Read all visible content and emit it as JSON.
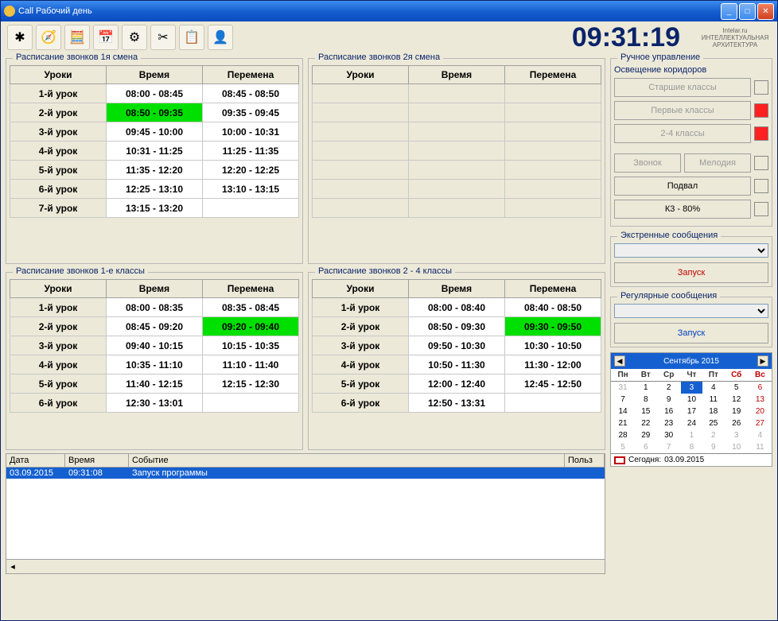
{
  "window": {
    "title": "Call      Рабочий день"
  },
  "clock": "09:31:19",
  "logo": "Intelar.ru ИНТЕЛЛЕКТУАЛЬНАЯ АРХИТЕКТУРА",
  "toolbar_icons": [
    "✱",
    "🧭",
    "🧮",
    "📅",
    "⚙",
    "✂",
    "📋",
    "👤"
  ],
  "schedules": {
    "s1": {
      "title": "Расписание звонков 1я смена",
      "headers": [
        "Уроки",
        "Время",
        "Перемена"
      ],
      "rows": [
        {
          "l": "1-й урок",
          "t": "08:00 - 08:45",
          "b": "08:45 - 08:50"
        },
        {
          "l": "2-й урок",
          "t": "08:50 - 09:35",
          "b": "09:35 - 09:45",
          "tactive": true
        },
        {
          "l": "3-й урок",
          "t": "09:45 - 10:00",
          "b": "10:00 - 10:31"
        },
        {
          "l": "4-й урок",
          "t": "10:31 - 11:25",
          "b": "11:25 - 11:35"
        },
        {
          "l": "5-й урок",
          "t": "11:35 - 12:20",
          "b": "12:20 - 12:25"
        },
        {
          "l": "6-й урок",
          "t": "12:25 - 13:10",
          "b": "13:10 - 13:15"
        },
        {
          "l": "7-й урок",
          "t": "13:15 - 13:20",
          "b": ""
        }
      ]
    },
    "s2": {
      "title": "Расписание звонков 2я смена",
      "headers": [
        "Уроки",
        "Время",
        "Перемена"
      ],
      "rows": [
        {
          "l": "",
          "t": "",
          "b": ""
        },
        {
          "l": "",
          "t": "",
          "b": ""
        },
        {
          "l": "",
          "t": "",
          "b": ""
        },
        {
          "l": "",
          "t": "",
          "b": ""
        },
        {
          "l": "",
          "t": "",
          "b": ""
        },
        {
          "l": "",
          "t": "",
          "b": ""
        },
        {
          "l": "",
          "t": "",
          "b": ""
        }
      ]
    },
    "s3": {
      "title": "Расписание звонков 1-е классы",
      "headers": [
        "Уроки",
        "Время",
        "Перемена"
      ],
      "rows": [
        {
          "l": "1-й урок",
          "t": "08:00 - 08:35",
          "b": "08:35 - 08:45"
        },
        {
          "l": "2-й урок",
          "t": "08:45 - 09:20",
          "b": "09:20 - 09:40",
          "bactive": true
        },
        {
          "l": "3-й урок",
          "t": "09:40 - 10:15",
          "b": "10:15 - 10:35"
        },
        {
          "l": "4-й урок",
          "t": "10:35 - 11:10",
          "b": "11:10 - 11:40"
        },
        {
          "l": "5-й урок",
          "t": "11:40 - 12:15",
          "b": "12:15 - 12:30"
        },
        {
          "l": "6-й урок",
          "t": "12:30 - 13:01",
          "b": ""
        }
      ]
    },
    "s4": {
      "title": "Расписание звонков 2 - 4 классы",
      "headers": [
        "Уроки",
        "Время",
        "Перемена"
      ],
      "rows": [
        {
          "l": "1-й урок",
          "t": "08:00 - 08:40",
          "b": "08:40 - 08:50"
        },
        {
          "l": "2-й урок",
          "t": "08:50 - 09:30",
          "b": "09:30 - 09:50",
          "bactive": true
        },
        {
          "l": "3-й урок",
          "t": "09:50 - 10:30",
          "b": "10:30 - 10:50"
        },
        {
          "l": "4-й урок",
          "t": "10:50 - 11:30",
          "b": "11:30 - 12:00"
        },
        {
          "l": "5-й урок",
          "t": "12:00 - 12:40",
          "b": "12:45 - 12:50"
        },
        {
          "l": "6-й урок",
          "t": "12:50 - 13:31",
          "b": ""
        }
      ]
    }
  },
  "log": {
    "headers": {
      "date": "Дата",
      "time": "Время",
      "event": "Событие",
      "user": "Польз"
    },
    "widths": {
      "date": 74,
      "time": 80,
      "event": 520,
      "user": 50
    },
    "row": {
      "date": "03.09.2015",
      "time": "09:31:08",
      "event": "Запуск программы",
      "user": ""
    }
  },
  "manual": {
    "title": "Ручное управление",
    "lighting_title": "Освещение коридоров",
    "btn_senior": "Старшие классы",
    "btn_first": "Первые классы",
    "btn_24": "2-4 классы",
    "btn_bell": "Звонок",
    "btn_melody": "Мелодия",
    "btn_basement": "Подвал",
    "btn_k3": "К3 - 80%",
    "ind_senior": false,
    "ind_first": true,
    "ind_24": true,
    "ind_bell": false,
    "ind_basement": false,
    "ind_k3": false
  },
  "emergency": {
    "title": "Экстренные сообщения",
    "launch": "Запуск"
  },
  "regular": {
    "title": "Регулярные сообщения",
    "launch": "Запуск"
  },
  "calendar": {
    "month": "Сентябрь 2015",
    "days": [
      "Пн",
      "Вт",
      "Ср",
      "Чт",
      "Пт",
      "Сб",
      "Вс"
    ],
    "today_label": "Сегодня:",
    "today_date": "03.09.2015",
    "weeks": [
      [
        {
          "d": 31,
          "o": true
        },
        {
          "d": 1
        },
        {
          "d": 2
        },
        {
          "d": 3,
          "today": true
        },
        {
          "d": 4
        },
        {
          "d": 5
        },
        {
          "d": 6,
          "w": true
        }
      ],
      [
        {
          "d": 7
        },
        {
          "d": 8
        },
        {
          "d": 9
        },
        {
          "d": 10
        },
        {
          "d": 11
        },
        {
          "d": 12
        },
        {
          "d": 13,
          "w": true
        }
      ],
      [
        {
          "d": 14
        },
        {
          "d": 15
        },
        {
          "d": 16
        },
        {
          "d": 17
        },
        {
          "d": 18
        },
        {
          "d": 19
        },
        {
          "d": 20,
          "w": true
        }
      ],
      [
        {
          "d": 21
        },
        {
          "d": 22
        },
        {
          "d": 23
        },
        {
          "d": 24
        },
        {
          "d": 25
        },
        {
          "d": 26
        },
        {
          "d": 27,
          "w": true
        }
      ],
      [
        {
          "d": 28
        },
        {
          "d": 29
        },
        {
          "d": 30
        },
        {
          "d": 1,
          "o": true
        },
        {
          "d": 2,
          "o": true
        },
        {
          "d": 3,
          "o": true
        },
        {
          "d": 4,
          "o": true
        }
      ],
      [
        {
          "d": 5,
          "o": true
        },
        {
          "d": 6,
          "o": true
        },
        {
          "d": 7,
          "o": true
        },
        {
          "d": 8,
          "o": true
        },
        {
          "d": 9,
          "o": true
        },
        {
          "d": 10,
          "o": true
        },
        {
          "d": 11,
          "o": true
        }
      ]
    ]
  }
}
